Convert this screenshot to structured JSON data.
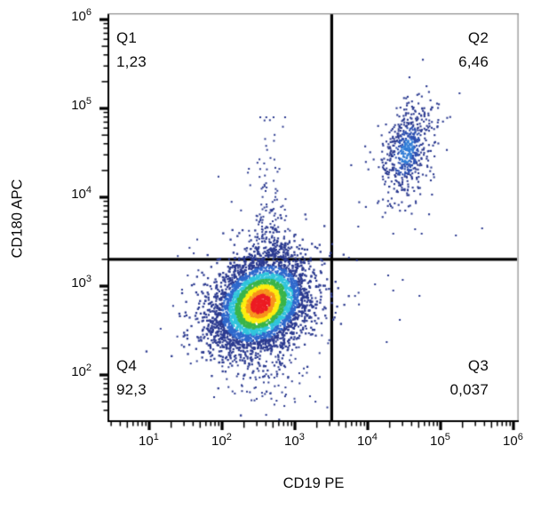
{
  "chart_data": {
    "type": "scatter",
    "variant": "flow-cytometry-density-dot-plot",
    "title": "",
    "xlabel": "CD19 PE",
    "ylabel": "CD180 APC",
    "x_scale": "biexponential-log",
    "y_scale": "biexponential-log",
    "x_tick_exponents": [
      1,
      2,
      3,
      4,
      5,
      6
    ],
    "y_tick_exponents": [
      2,
      3,
      4,
      5,
      6
    ],
    "x_range_log": [
      0.45,
      6.05
    ],
    "y_range_log": [
      1.48,
      6.06
    ],
    "grid": false,
    "gates": {
      "x_value": 3200,
      "x_log": 3.505,
      "y_value": 2000,
      "y_log": 3.301
    },
    "quadrants": [
      {
        "name": "Q1",
        "percent": "1,23"
      },
      {
        "name": "Q2",
        "percent": "6,46"
      },
      {
        "name": "Q3",
        "percent": "0,037"
      },
      {
        "name": "Q4",
        "percent": "92,3"
      }
    ],
    "populations": [
      {
        "id": "main-negative",
        "kind": "gauss",
        "n": 4300,
        "center_log": [
          2.53,
          2.8
        ],
        "sd_log": [
          0.34,
          0.27
        ],
        "rho": 0.25,
        "colormap": "density_jet",
        "dot": 2.3
      },
      {
        "id": "double-positive",
        "kind": "gauss",
        "n": 620,
        "center_log": [
          4.54,
          4.52
        ],
        "sd_log": [
          0.18,
          0.28
        ],
        "rho": 0.35,
        "colormap": "density_blue",
        "dot": 2.1
      },
      {
        "id": "halo",
        "kind": "gauss",
        "n": 240,
        "center_log": [
          2.55,
          2.72
        ],
        "sd_log": [
          0.5,
          0.5
        ],
        "rho": 0.1,
        "colormap": "flat",
        "dot": 2.0
      },
      {
        "id": "q1-vertical-tail",
        "kind": "tail-up",
        "n": 210,
        "x_log_mean": 2.66,
        "x_log_sd": 0.13,
        "y_log_start": 3.3,
        "y_log_decay": 0.42,
        "y_log_max": 4.9,
        "colormap": "flat",
        "dot": 2.0
      },
      {
        "id": "lower-drip",
        "kind": "gauss",
        "n": 55,
        "center_log": [
          2.62,
          1.95
        ],
        "sd_log": [
          0.28,
          0.18
        ],
        "rho": 0.0,
        "colormap": "flat",
        "dot": 2.0
      }
    ],
    "sparse_points_log": [
      [
        3.87,
        3.67
      ],
      [
        4.35,
        3.59
      ],
      [
        4.65,
        3.64
      ],
      [
        5.21,
        3.57
      ],
      [
        5.57,
        3.65
      ],
      [
        4.74,
        3.59
      ],
      [
        3.85,
        3.29
      ],
      [
        4.28,
        3.12
      ],
      [
        4.48,
        3.07
      ],
      [
        4.35,
        2.95
      ],
      [
        4.1,
        3.02
      ],
      [
        4.71,
        2.89
      ],
      [
        4.44,
        2.62
      ],
      [
        4.26,
        2.37
      ],
      [
        5.26,
        5.17
      ]
    ]
  },
  "colors": {
    "density_jet": [
      [
        0.38,
        "#ec1c24"
      ],
      [
        0.58,
        "#f7941d"
      ],
      [
        0.78,
        "#fdee10"
      ],
      [
        1.02,
        "#3bb54a"
      ],
      [
        1.28,
        "#31c5dd"
      ],
      [
        1.56,
        "#2f68cc"
      ],
      [
        9,
        "#2b3a90"
      ]
    ],
    "density_blue": [
      [
        0.5,
        "#2f7cd6"
      ],
      [
        1.0,
        "#2c4fb0"
      ],
      [
        9,
        "#2b3a90"
      ]
    ],
    "dot": "#2b3a90",
    "axis": "#000000",
    "border": "#8a8a8a",
    "gate_line": "#000000",
    "background": "#ffffff"
  }
}
